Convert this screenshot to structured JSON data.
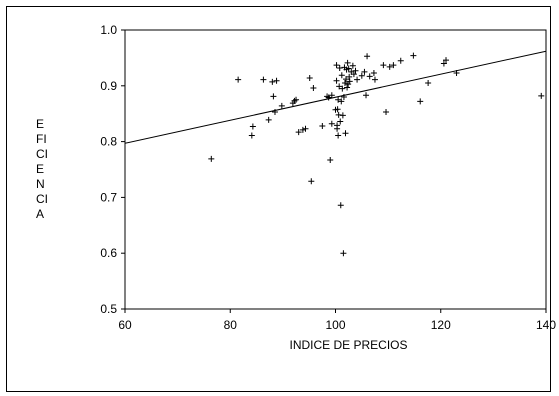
{
  "chart_data": {
    "type": "scatter",
    "title": "",
    "xlabel": "INDICE DE PRECIOS",
    "ylabel_lines": [
      "E",
      "FI",
      "CI",
      "E",
      "N",
      "CI",
      "A"
    ],
    "xlim": [
      60,
      140
    ],
    "ylim": [
      0.5,
      1.0
    ],
    "x_ticks": [
      60,
      80,
      100,
      120,
      140
    ],
    "y_ticks": [
      0.5,
      0.6,
      0.7,
      0.8,
      0.9,
      1.0
    ],
    "x_tick_labels": [
      "60",
      "80",
      "100",
      "120",
      "140"
    ],
    "y_tick_labels": [
      "0.5",
      "0.6",
      "0.7",
      "0.8",
      "0.9",
      "1.0"
    ],
    "grid": false,
    "marker": "+",
    "color": "#000000",
    "trendline": {
      "x": [
        60,
        140
      ],
      "y": [
        0.797,
        0.962
      ]
    },
    "points": [
      [
        76.4,
        0.769
      ],
      [
        81.5,
        0.911
      ],
      [
        84.1,
        0.811
      ],
      [
        84.3,
        0.827
      ],
      [
        86.3,
        0.911
      ],
      [
        87.3,
        0.839
      ],
      [
        88.0,
        0.907
      ],
      [
        88.2,
        0.881
      ],
      [
        88.5,
        0.853
      ],
      [
        88.8,
        0.909
      ],
      [
        89.8,
        0.864
      ],
      [
        91.9,
        0.869
      ],
      [
        92.2,
        0.873
      ],
      [
        92.5,
        0.875
      ],
      [
        93.0,
        0.817
      ],
      [
        93.8,
        0.821
      ],
      [
        94.3,
        0.823
      ],
      [
        95.1,
        0.914
      ],
      [
        95.4,
        0.729
      ],
      [
        95.8,
        0.896
      ],
      [
        97.5,
        0.828
      ],
      [
        98.4,
        0.881
      ],
      [
        98.7,
        0.879
      ],
      [
        99.0,
        0.767
      ],
      [
        99.3,
        0.883
      ],
      [
        99.3,
        0.832
      ],
      [
        100.0,
        0.857
      ],
      [
        100.2,
        0.937
      ],
      [
        100.2,
        0.909
      ],
      [
        100.3,
        0.823
      ],
      [
        100.3,
        0.829
      ],
      [
        100.4,
        0.858
      ],
      [
        100.5,
        0.811
      ],
      [
        100.5,
        0.875
      ],
      [
        100.6,
        0.848
      ],
      [
        100.7,
        0.899
      ],
      [
        100.8,
        0.932
      ],
      [
        100.9,
        0.836
      ],
      [
        101.0,
        0.686
      ],
      [
        101.1,
        0.872
      ],
      [
        101.2,
        0.919
      ],
      [
        101.3,
        0.895
      ],
      [
        101.4,
        0.847
      ],
      [
        101.5,
        0.6
      ],
      [
        101.6,
        0.88
      ],
      [
        101.7,
        0.933
      ],
      [
        101.8,
        0.905
      ],
      [
        101.9,
        0.815
      ],
      [
        102.0,
        0.912
      ],
      [
        102.1,
        0.929
      ],
      [
        102.2,
        0.897
      ],
      [
        102.3,
        0.941
      ],
      [
        102.4,
        0.903
      ],
      [
        102.5,
        0.931
      ],
      [
        102.6,
        0.916
      ],
      [
        102.7,
        0.908
      ],
      [
        103.0,
        0.925
      ],
      [
        103.3,
        0.936
      ],
      [
        103.5,
        0.921
      ],
      [
        103.8,
        0.927
      ],
      [
        104.1,
        0.911
      ],
      [
        105.0,
        0.918
      ],
      [
        105.5,
        0.925
      ],
      [
        105.8,
        0.883
      ],
      [
        106.0,
        0.953
      ],
      [
        106.5,
        0.917
      ],
      [
        107.3,
        0.923
      ],
      [
        107.5,
        0.911
      ],
      [
        109.1,
        0.937
      ],
      [
        109.6,
        0.853
      ],
      [
        110.3,
        0.934
      ],
      [
        111.0,
        0.937
      ],
      [
        112.4,
        0.945
      ],
      [
        114.8,
        0.954
      ],
      [
        116.1,
        0.872
      ],
      [
        117.6,
        0.905
      ],
      [
        120.6,
        0.94
      ],
      [
        121.0,
        0.946
      ],
      [
        123.0,
        0.923
      ],
      [
        139.1,
        0.882
      ]
    ]
  }
}
